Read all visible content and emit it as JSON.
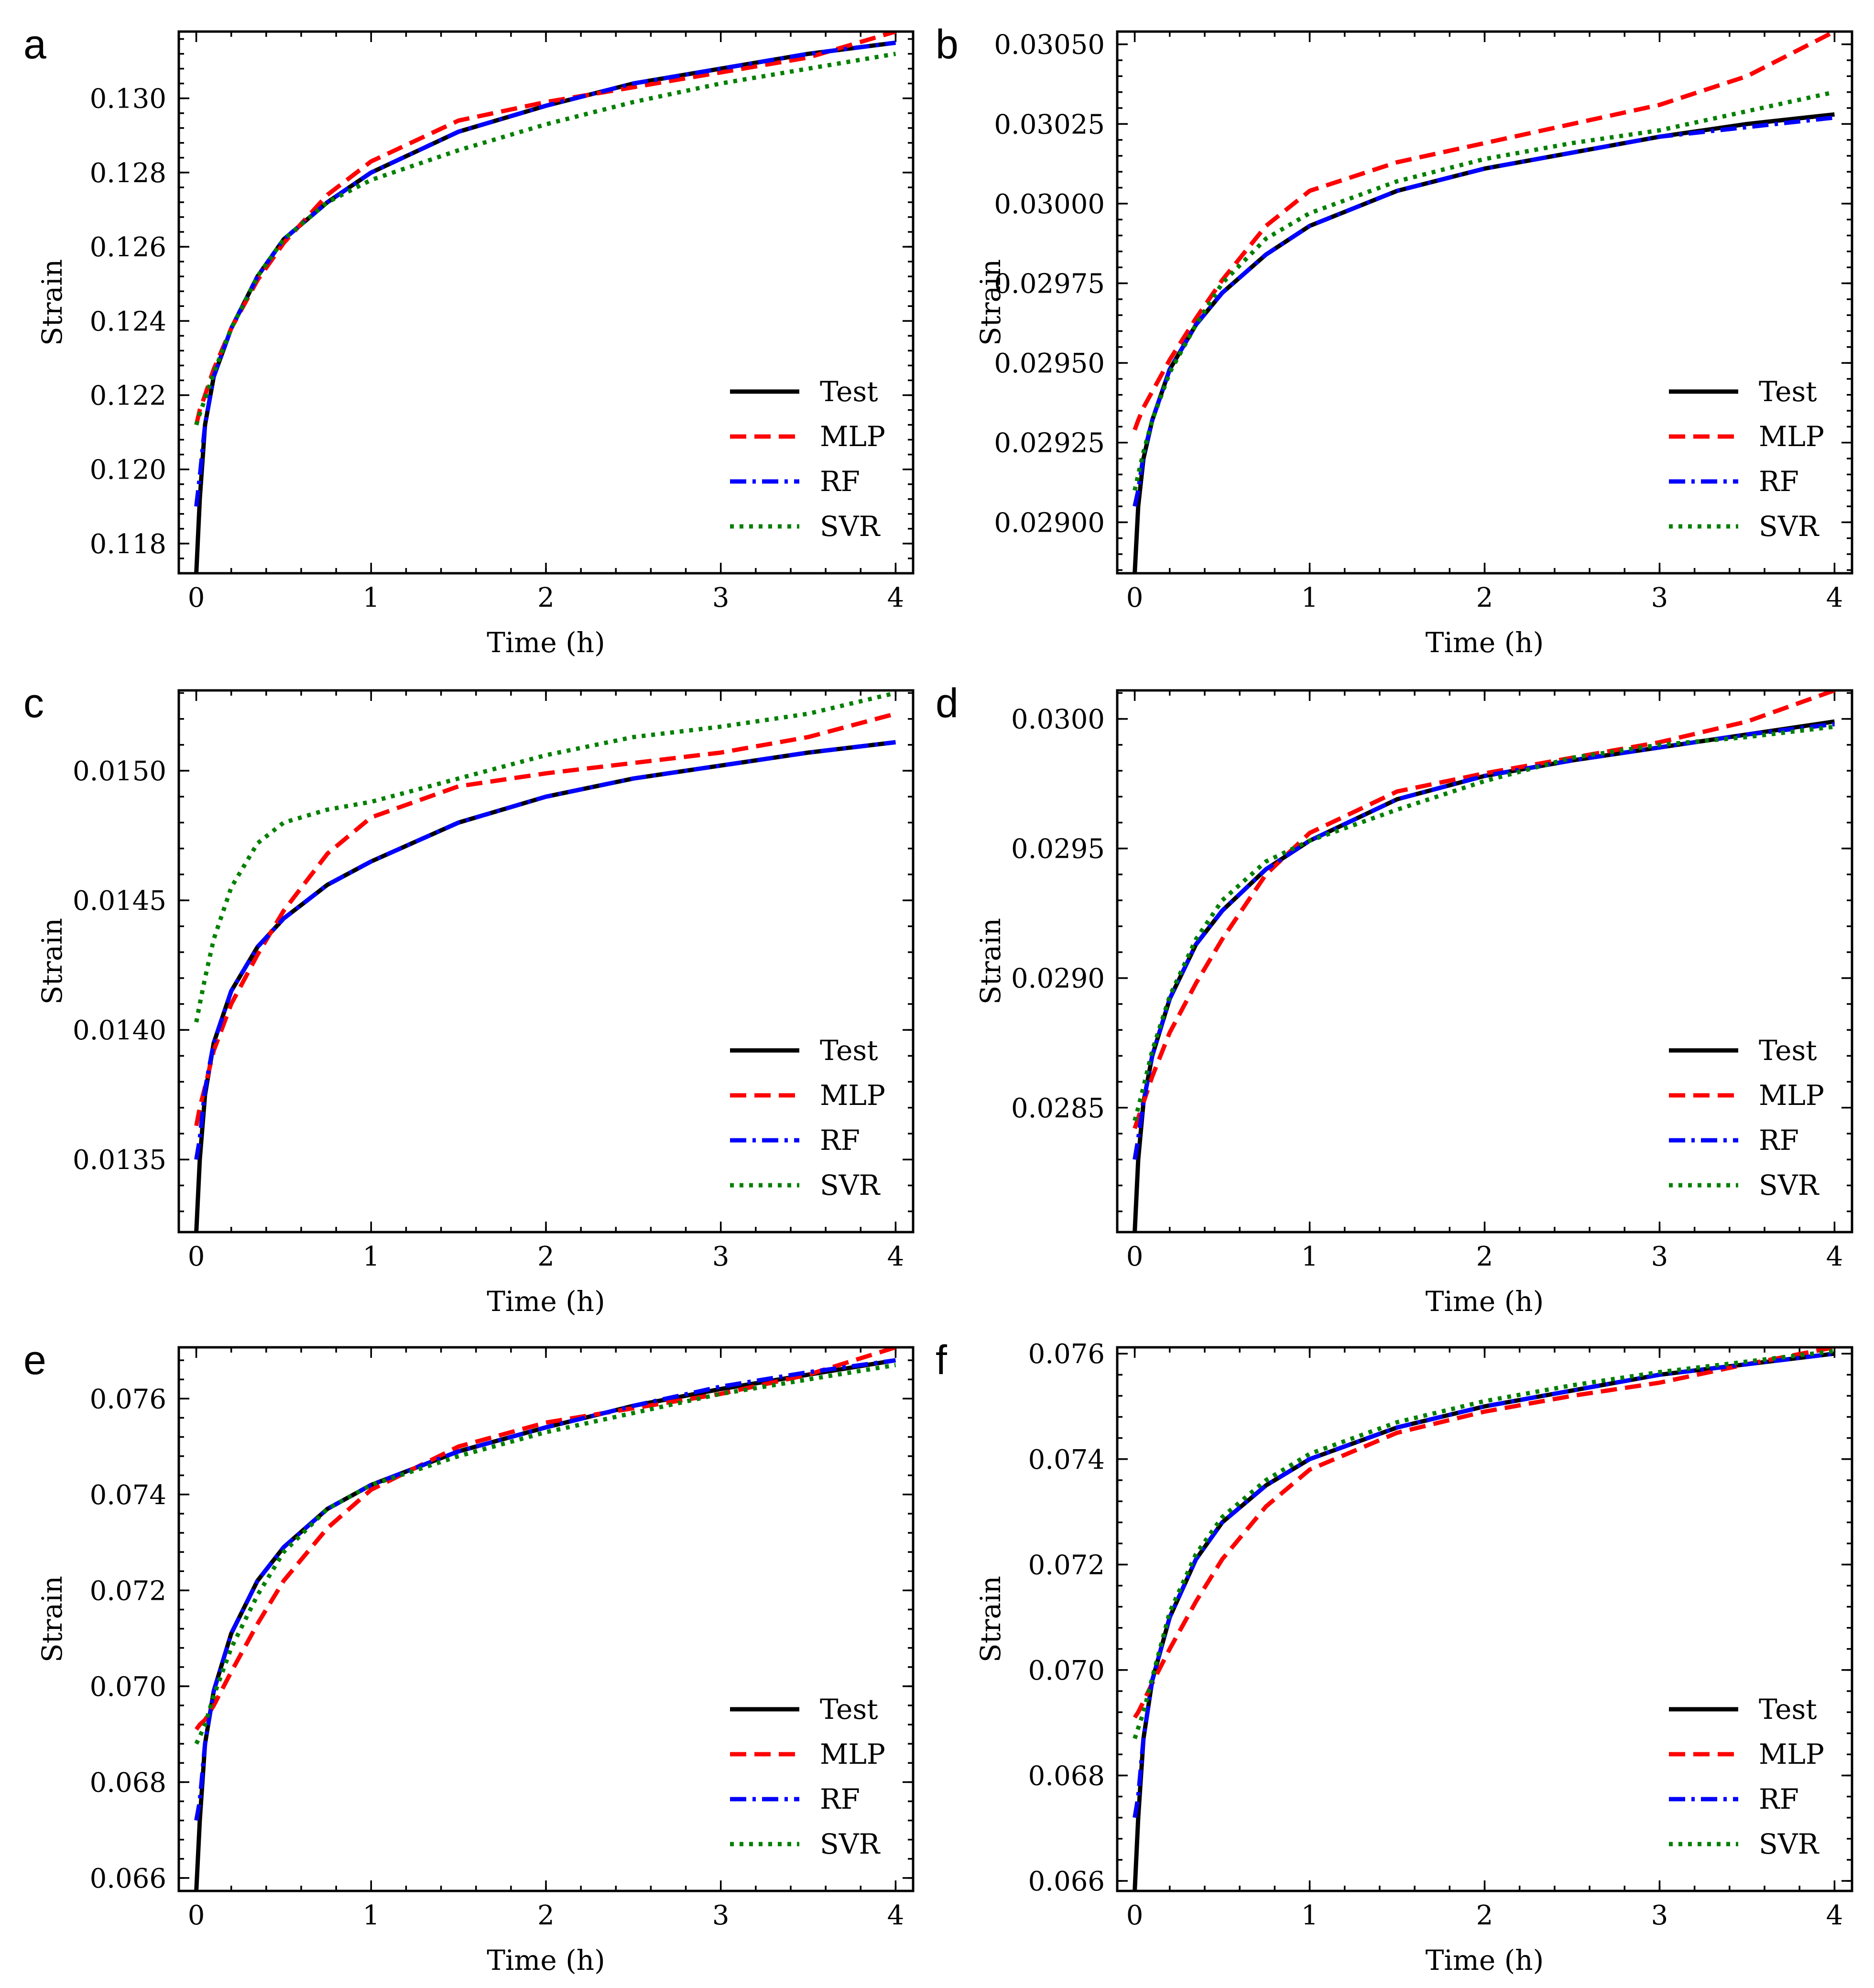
{
  "figure": {
    "legend_placement": "lower-right",
    "series_styles": [
      {
        "name": "Test",
        "color": "#000000",
        "dash": "solid"
      },
      {
        "name": "MLP",
        "color": "#ff0000",
        "dash": "dashed"
      },
      {
        "name": "RF",
        "color": "#0000ff",
        "dash": "dashdot"
      },
      {
        "name": "SVR",
        "color": "#008000",
        "dash": "dotted"
      }
    ]
  },
  "chart_data": [
    {
      "panel": "a",
      "type": "line",
      "xlabel": "Time (h)",
      "ylabel": "Strain",
      "xlim": [
        -0.1,
        4.1
      ],
      "ylim": [
        0.1172,
        0.1318
      ],
      "xticks": [
        0,
        1,
        2,
        3,
        4
      ],
      "xtick_labels": [
        "0",
        "1",
        "2",
        "3",
        "4"
      ],
      "yticks": [
        0.118,
        0.12,
        0.122,
        0.124,
        0.126,
        0.128,
        0.13
      ],
      "ytick_labels": [
        "0.118",
        "0.120",
        "0.122",
        "0.124",
        "0.126",
        "0.128",
        "0.130"
      ],
      "legend": [
        "Test",
        "MLP",
        "RF",
        "SVR"
      ],
      "x": [
        0,
        0.02,
        0.05,
        0.1,
        0.2,
        0.35,
        0.5,
        0.75,
        1,
        1.5,
        2,
        2.5,
        3,
        3.5,
        4
      ],
      "series": [
        {
          "name": "Test",
          "values": [
            0.1172,
            0.1192,
            0.1212,
            0.1225,
            0.1238,
            0.1252,
            0.1262,
            0.1272,
            0.128,
            0.1291,
            0.1298,
            0.1304,
            0.1308,
            0.1312,
            0.1315
          ]
        },
        {
          "name": "MLP",
          "values": [
            0.1212,
            0.1216,
            0.122,
            0.1227,
            0.1238,
            0.1251,
            0.1261,
            0.1274,
            0.1283,
            0.1294,
            0.1299,
            0.1303,
            0.1307,
            0.1311,
            0.1318
          ]
        },
        {
          "name": "RF",
          "values": [
            0.119,
            0.1198,
            0.1212,
            0.1225,
            0.1238,
            0.1252,
            0.1262,
            0.1272,
            0.128,
            0.1291,
            0.1298,
            0.1304,
            0.1308,
            0.1312,
            0.1315
          ]
        },
        {
          "name": "SVR",
          "values": [
            0.1212,
            0.1215,
            0.1219,
            0.1226,
            0.1238,
            0.1252,
            0.1262,
            0.1272,
            0.1278,
            0.1286,
            0.1293,
            0.1299,
            0.1304,
            0.1308,
            0.1312
          ]
        }
      ]
    },
    {
      "panel": "b",
      "type": "line",
      "xlabel": "Time (h)",
      "ylabel": "Strain",
      "xlim": [
        -0.1,
        4.1
      ],
      "ylim": [
        0.02884,
        0.03054
      ],
      "xticks": [
        0,
        1,
        2,
        3,
        4
      ],
      "xtick_labels": [
        "0",
        "1",
        "2",
        "3",
        "4"
      ],
      "yticks": [
        0.029,
        0.02925,
        0.0295,
        0.02975,
        0.03,
        0.03025,
        0.0305
      ],
      "ytick_labels": [
        "0.02900",
        "0.02925",
        "0.02950",
        "0.02975",
        "0.03000",
        "0.03025",
        "0.03050"
      ],
      "legend": [
        "Test",
        "MLP",
        "RF",
        "SVR"
      ],
      "x": [
        0,
        0.02,
        0.05,
        0.1,
        0.2,
        0.35,
        0.5,
        0.75,
        1,
        1.5,
        2,
        2.5,
        3,
        3.5,
        4
      ],
      "series": [
        {
          "name": "Test",
          "values": [
            0.02884,
            0.02905,
            0.0292,
            0.02932,
            0.02948,
            0.02962,
            0.02972,
            0.02984,
            0.02993,
            0.03004,
            0.03011,
            0.03016,
            0.03021,
            0.03025,
            0.03028
          ]
        },
        {
          "name": "MLP",
          "values": [
            0.02929,
            0.02932,
            0.02936,
            0.02941,
            0.02951,
            0.02964,
            0.02976,
            0.02993,
            0.03004,
            0.03013,
            0.03019,
            0.03025,
            0.03031,
            0.0304,
            0.03054
          ]
        },
        {
          "name": "RF",
          "values": [
            0.02905,
            0.0291,
            0.02921,
            0.02932,
            0.02948,
            0.02962,
            0.02972,
            0.02984,
            0.02993,
            0.03004,
            0.03011,
            0.03016,
            0.03021,
            0.03024,
            0.03027
          ]
        },
        {
          "name": "SVR",
          "values": [
            0.0291,
            0.02915,
            0.02922,
            0.02932,
            0.02947,
            0.02962,
            0.02975,
            0.02989,
            0.02997,
            0.03007,
            0.03014,
            0.03019,
            0.03023,
            0.03029,
            0.03035
          ]
        }
      ]
    },
    {
      "panel": "c",
      "type": "line",
      "xlabel": "Time (h)",
      "ylabel": "Strain",
      "xlim": [
        -0.1,
        4.1
      ],
      "ylim": [
        0.01322,
        0.01531
      ],
      "xticks": [
        0,
        1,
        2,
        3,
        4
      ],
      "xtick_labels": [
        "0",
        "1",
        "2",
        "3",
        "4"
      ],
      "yticks": [
        0.0135,
        0.014,
        0.0145,
        0.015
      ],
      "ytick_labels": [
        "0.0135",
        "0.0140",
        "0.0145",
        "0.0150"
      ],
      "legend": [
        "Test",
        "MLP",
        "RF",
        "SVR"
      ],
      "x": [
        0,
        0.02,
        0.05,
        0.1,
        0.2,
        0.35,
        0.5,
        0.75,
        1,
        1.5,
        2,
        2.5,
        3,
        3.5,
        4
      ],
      "series": [
        {
          "name": "Test",
          "values": [
            0.01322,
            0.0135,
            0.01375,
            0.01395,
            0.01415,
            0.01432,
            0.01443,
            0.01456,
            0.01465,
            0.0148,
            0.0149,
            0.01497,
            0.01502,
            0.01507,
            0.01511
          ]
        },
        {
          "name": "MLP",
          "values": [
            0.01363,
            0.0137,
            0.01378,
            0.01392,
            0.0141,
            0.01429,
            0.01446,
            0.01468,
            0.01482,
            0.01494,
            0.01499,
            0.01503,
            0.01507,
            0.01513,
            0.01522
          ]
        },
        {
          "name": "RF",
          "values": [
            0.0135,
            0.01358,
            0.01377,
            0.01395,
            0.01415,
            0.01432,
            0.01443,
            0.01456,
            0.01465,
            0.0148,
            0.0149,
            0.01497,
            0.01502,
            0.01507,
            0.01511
          ]
        },
        {
          "name": "SVR",
          "values": [
            0.01403,
            0.0141,
            0.0142,
            0.01435,
            0.01455,
            0.01472,
            0.0148,
            0.01485,
            0.01488,
            0.01497,
            0.01506,
            0.01513,
            0.01517,
            0.01522,
            0.0153
          ]
        }
      ]
    },
    {
      "panel": "d",
      "type": "line",
      "xlabel": "Time (h)",
      "ylabel": "Strain",
      "xlim": [
        -0.1,
        4.1
      ],
      "ylim": [
        0.02802,
        0.03011
      ],
      "xticks": [
        0,
        1,
        2,
        3,
        4
      ],
      "xtick_labels": [
        "0",
        "1",
        "2",
        "3",
        "4"
      ],
      "yticks": [
        0.0285,
        0.029,
        0.0295,
        0.03
      ],
      "ytick_labels": [
        "0.0285",
        "0.0290",
        "0.0295",
        "0.0300"
      ],
      "legend": [
        "Test",
        "MLP",
        "RF",
        "SVR"
      ],
      "x": [
        0,
        0.02,
        0.05,
        0.1,
        0.2,
        0.35,
        0.5,
        0.75,
        1,
        1.5,
        2,
        2.5,
        3,
        3.5,
        4
      ],
      "series": [
        {
          "name": "Test",
          "values": [
            0.02802,
            0.0283,
            0.02852,
            0.0287,
            0.02892,
            0.02913,
            0.02926,
            0.02942,
            0.02953,
            0.02969,
            0.02978,
            0.02984,
            0.02989,
            0.02994,
            0.02999
          ]
        },
        {
          "name": "MLP",
          "values": [
            0.02842,
            0.02846,
            0.02852,
            0.02862,
            0.02879,
            0.02898,
            0.02915,
            0.0294,
            0.02956,
            0.02972,
            0.02979,
            0.02985,
            0.02991,
            0.02999,
            0.03011
          ]
        },
        {
          "name": "RF",
          "values": [
            0.0283,
            0.02838,
            0.02852,
            0.0287,
            0.02892,
            0.02913,
            0.02926,
            0.02942,
            0.02953,
            0.02969,
            0.02978,
            0.02984,
            0.02989,
            0.02994,
            0.02998
          ]
        },
        {
          "name": "SVR",
          "values": [
            0.02845,
            0.0285,
            0.02858,
            0.02872,
            0.02893,
            0.02915,
            0.0293,
            0.02945,
            0.02953,
            0.02965,
            0.02976,
            0.02985,
            0.0299,
            0.02993,
            0.02997
          ]
        }
      ]
    },
    {
      "panel": "e",
      "type": "line",
      "xlabel": "Time (h)",
      "ylabel": "Strain",
      "xlim": [
        -0.1,
        4.1
      ],
      "ylim": [
        0.06573,
        0.07707
      ],
      "xticks": [
        0,
        1,
        2,
        3,
        4
      ],
      "xtick_labels": [
        "0",
        "1",
        "2",
        "3",
        "4"
      ],
      "yticks": [
        0.066,
        0.068,
        0.07,
        0.072,
        0.074,
        0.076
      ],
      "ytick_labels": [
        "0.066",
        "0.068",
        "0.070",
        "0.072",
        "0.074",
        "0.076"
      ],
      "legend": [
        "Test",
        "MLP",
        "RF",
        "SVR"
      ],
      "x": [
        0,
        0.02,
        0.05,
        0.1,
        0.2,
        0.35,
        0.5,
        0.75,
        1,
        1.5,
        2,
        2.5,
        3,
        3.5,
        4
      ],
      "series": [
        {
          "name": "Test",
          "values": [
            0.06573,
            0.0672,
            0.0688,
            0.0699,
            0.0711,
            0.0722,
            0.0729,
            0.0737,
            0.0742,
            0.0749,
            0.0754,
            0.07585,
            0.0762,
            0.0765,
            0.0768
          ]
        },
        {
          "name": "MLP",
          "values": [
            0.0691,
            0.0692,
            0.0693,
            0.0696,
            0.0703,
            0.0713,
            0.0722,
            0.0733,
            0.0741,
            0.075,
            0.0755,
            0.0758,
            0.0761,
            0.0765,
            0.07707
          ]
        },
        {
          "name": "RF",
          "values": [
            0.0672,
            0.0676,
            0.0688,
            0.0699,
            0.0711,
            0.0722,
            0.0729,
            0.0737,
            0.0742,
            0.0749,
            0.0754,
            0.07585,
            0.07625,
            0.07655,
            0.0768
          ]
        },
        {
          "name": "SVR",
          "values": [
            0.0688,
            0.06895,
            0.0692,
            0.0698,
            0.0708,
            0.0719,
            0.0728,
            0.0737,
            0.0742,
            0.0748,
            0.0753,
            0.0757,
            0.0761,
            0.0764,
            0.0767
          ]
        }
      ]
    },
    {
      "panel": "f",
      "type": "line",
      "xlabel": "Time (h)",
      "ylabel": "Strain",
      "xlim": [
        -0.1,
        4.1
      ],
      "ylim": [
        0.06581,
        0.07612
      ],
      "xticks": [
        0,
        1,
        2,
        3,
        4
      ],
      "xtick_labels": [
        "0",
        "1",
        "2",
        "3",
        "4"
      ],
      "yticks": [
        0.066,
        0.068,
        0.07,
        0.072,
        0.074,
        0.076
      ],
      "ytick_labels": [
        "0.066",
        "0.068",
        "0.070",
        "0.072",
        "0.074",
        "0.076"
      ],
      "legend": [
        "Test",
        "MLP",
        "RF",
        "SVR"
      ],
      "x": [
        0,
        0.02,
        0.05,
        0.1,
        0.2,
        0.35,
        0.5,
        0.75,
        1,
        1.5,
        2,
        2.5,
        3,
        3.5,
        4
      ],
      "series": [
        {
          "name": "Test",
          "values": [
            0.06581,
            0.0672,
            0.0687,
            0.0698,
            0.071,
            0.0721,
            0.0728,
            0.0735,
            0.074,
            0.0746,
            0.075,
            0.0753,
            0.0756,
            0.0758,
            0.076
          ]
        },
        {
          "name": "MLP",
          "values": [
            0.0691,
            0.0692,
            0.0694,
            0.06975,
            0.0704,
            0.0713,
            0.0721,
            0.0731,
            0.0738,
            0.0745,
            0.0749,
            0.0752,
            0.07545,
            0.0758,
            0.07612
          ]
        },
        {
          "name": "RF",
          "values": [
            0.0672,
            0.0676,
            0.0687,
            0.0698,
            0.071,
            0.0721,
            0.0728,
            0.0735,
            0.074,
            0.0746,
            0.075,
            0.0753,
            0.0756,
            0.0758,
            0.076
          ]
        },
        {
          "name": "SVR",
          "values": [
            0.0687,
            0.0689,
            0.0692,
            0.06985,
            0.0711,
            0.0722,
            0.0729,
            0.0736,
            0.0741,
            0.0747,
            0.0751,
            0.0754,
            0.07565,
            0.07585,
            0.07605
          ]
        }
      ]
    }
  ]
}
